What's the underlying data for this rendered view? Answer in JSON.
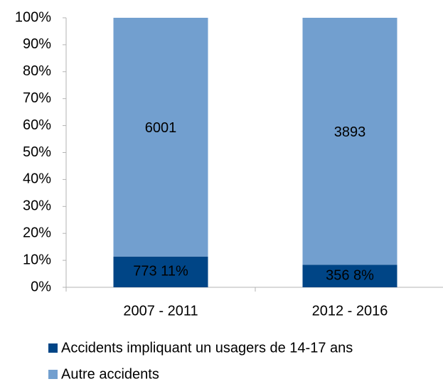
{
  "chart_data": {
    "type": "bar",
    "stacked": "percent",
    "categories": [
      "2007 - 2011",
      "2012 - 2016"
    ],
    "series": [
      {
        "name": "Accidents impliquant un usagers de 14-17 ans",
        "color": "#004586",
        "values": [
          773,
          356
        ],
        "value_labels": [
          "773 11%",
          "356 8%"
        ]
      },
      {
        "name": "Autre accidents",
        "color": "#729fcf",
        "values": [
          6001,
          3893
        ]
      }
    ],
    "ylim": [
      0,
      100
    ],
    "yticks": [
      {
        "value": 0,
        "label": "0%"
      },
      {
        "value": 10,
        "label": "10%"
      },
      {
        "value": 20,
        "label": "20%"
      },
      {
        "value": 30,
        "label": "30%"
      },
      {
        "value": 40,
        "label": "40%"
      },
      {
        "value": 50,
        "label": "50%"
      },
      {
        "value": 60,
        "label": "60%"
      },
      {
        "value": 70,
        "label": "70%"
      },
      {
        "value": 80,
        "label": "80%"
      },
      {
        "value": 90,
        "label": "90%"
      },
      {
        "value": 100,
        "label": "100%"
      }
    ],
    "grid": false,
    "legend": "bottom"
  }
}
